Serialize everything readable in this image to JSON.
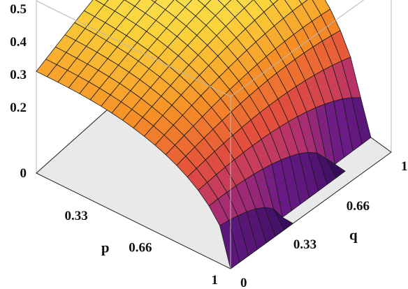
{
  "chart_data": {
    "type": "surface",
    "x_axis": {
      "label": "p",
      "range": [
        0,
        1
      ],
      "ticks": [
        "0.33",
        "0.66",
        "1"
      ]
    },
    "y_axis": {
      "label": "q",
      "range": [
        0,
        1
      ],
      "ticks": [
        "0",
        "0.33",
        "0.66",
        "1"
      ]
    },
    "z_axis": {
      "label": "",
      "range": [
        0,
        0.5
      ],
      "ticks": [
        "0",
        "0.2",
        "0.3",
        "0.4",
        "0.5"
      ]
    },
    "grid_points_per_axis": 19,
    "sample_values": {
      "p": [
        0,
        0.33,
        0.66,
        0.85
      ],
      "q": [
        0,
        0.33,
        0.66,
        1
      ],
      "z": [
        [
          0.31,
          0.36,
          0.41,
          0.44
        ],
        [
          0.28,
          0.32,
          0.36,
          0.38
        ],
        [
          0.17,
          0.2,
          0.22,
          0.23
        ],
        [
          0.06,
          0.07,
          0.08,
          0.08
        ]
      ]
    },
    "surface_support": "p + q*0.15 <= 1 (surface drops to 0 near p = 1)",
    "colormap": [
      "#2d0a55",
      "#6b1b86",
      "#b3306f",
      "#e4503d",
      "#f68f26",
      "#fbd33a",
      "#fdf26e"
    ],
    "box": true,
    "grid": true,
    "legend": "none"
  }
}
